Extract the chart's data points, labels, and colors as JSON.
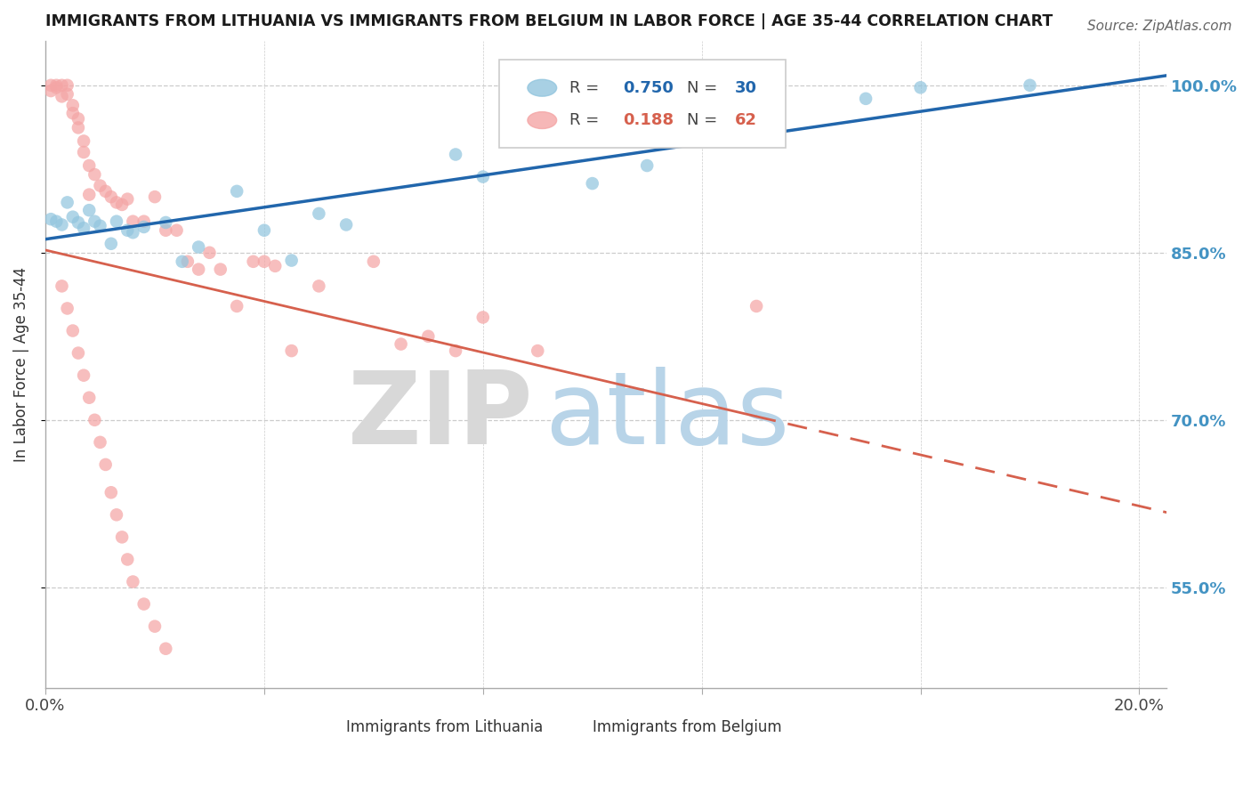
{
  "title": "IMMIGRANTS FROM LITHUANIA VS IMMIGRANTS FROM BELGIUM IN LABOR FORCE | AGE 35-44 CORRELATION CHART",
  "source": "Source: ZipAtlas.com",
  "ylabel": "In Labor Force | Age 35-44",
  "xlim": [
    0.0,
    0.205
  ],
  "ylim": [
    0.46,
    1.04
  ],
  "yticks": [
    0.55,
    0.7,
    0.85,
    1.0
  ],
  "ytick_labels": [
    "55.0%",
    "70.0%",
    "85.0%",
    "100.0%"
  ],
  "xticks": [
    0.0,
    0.04,
    0.08,
    0.12,
    0.16,
    0.2
  ],
  "blue_color": "#92c5de",
  "pink_color": "#f4a5a5",
  "blue_line_color": "#2166ac",
  "pink_line_color": "#d6604d",
  "right_axis_color": "#4393c3",
  "watermark_zip_color": "#d8d8d8",
  "watermark_atlas_color": "#b8d4e8",
  "watermark_text_zip": "ZIP",
  "watermark_text_atlas": "atlas",
  "blue_r": "0.750",
  "blue_n": "30",
  "pink_r": "0.188",
  "pink_n": "62",
  "blue_x": [
    0.001,
    0.002,
    0.003,
    0.004,
    0.005,
    0.006,
    0.007,
    0.008,
    0.009,
    0.01,
    0.012,
    0.013,
    0.015,
    0.016,
    0.018,
    0.022,
    0.025,
    0.028,
    0.035,
    0.04,
    0.045,
    0.05,
    0.055,
    0.075,
    0.08,
    0.1,
    0.11,
    0.15,
    0.16,
    0.18
  ],
  "blue_y": [
    0.88,
    0.878,
    0.875,
    0.895,
    0.882,
    0.877,
    0.872,
    0.888,
    0.878,
    0.874,
    0.858,
    0.878,
    0.87,
    0.868,
    0.873,
    0.877,
    0.842,
    0.855,
    0.905,
    0.87,
    0.843,
    0.885,
    0.875,
    0.938,
    0.918,
    0.912,
    0.928,
    0.988,
    0.998,
    1.0
  ],
  "pink_x": [
    0.001,
    0.001,
    0.002,
    0.002,
    0.003,
    0.003,
    0.004,
    0.004,
    0.005,
    0.005,
    0.006,
    0.006,
    0.007,
    0.007,
    0.008,
    0.008,
    0.009,
    0.01,
    0.011,
    0.012,
    0.013,
    0.014,
    0.015,
    0.016,
    0.018,
    0.02,
    0.022,
    0.024,
    0.026,
    0.028,
    0.03,
    0.032,
    0.035,
    0.038,
    0.04,
    0.042,
    0.045,
    0.05,
    0.06,
    0.065,
    0.07,
    0.075,
    0.08,
    0.09,
    0.13,
    0.003,
    0.004,
    0.005,
    0.006,
    0.007,
    0.008,
    0.009,
    0.01,
    0.011,
    0.012,
    0.013,
    0.014,
    0.015,
    0.016,
    0.018,
    0.02,
    0.022
  ],
  "pink_y": [
    1.0,
    0.995,
    1.0,
    0.998,
    1.0,
    0.99,
    0.992,
    1.0,
    0.982,
    0.975,
    0.97,
    0.962,
    0.95,
    0.94,
    0.928,
    0.902,
    0.92,
    0.91,
    0.905,
    0.9,
    0.895,
    0.893,
    0.898,
    0.878,
    0.878,
    0.9,
    0.87,
    0.87,
    0.842,
    0.835,
    0.85,
    0.835,
    0.802,
    0.842,
    0.842,
    0.838,
    0.762,
    0.82,
    0.842,
    0.768,
    0.775,
    0.762,
    0.792,
    0.762,
    0.802,
    0.82,
    0.8,
    0.78,
    0.76,
    0.74,
    0.72,
    0.7,
    0.68,
    0.66,
    0.635,
    0.615,
    0.595,
    0.575,
    0.555,
    0.535,
    0.515,
    0.495
  ]
}
